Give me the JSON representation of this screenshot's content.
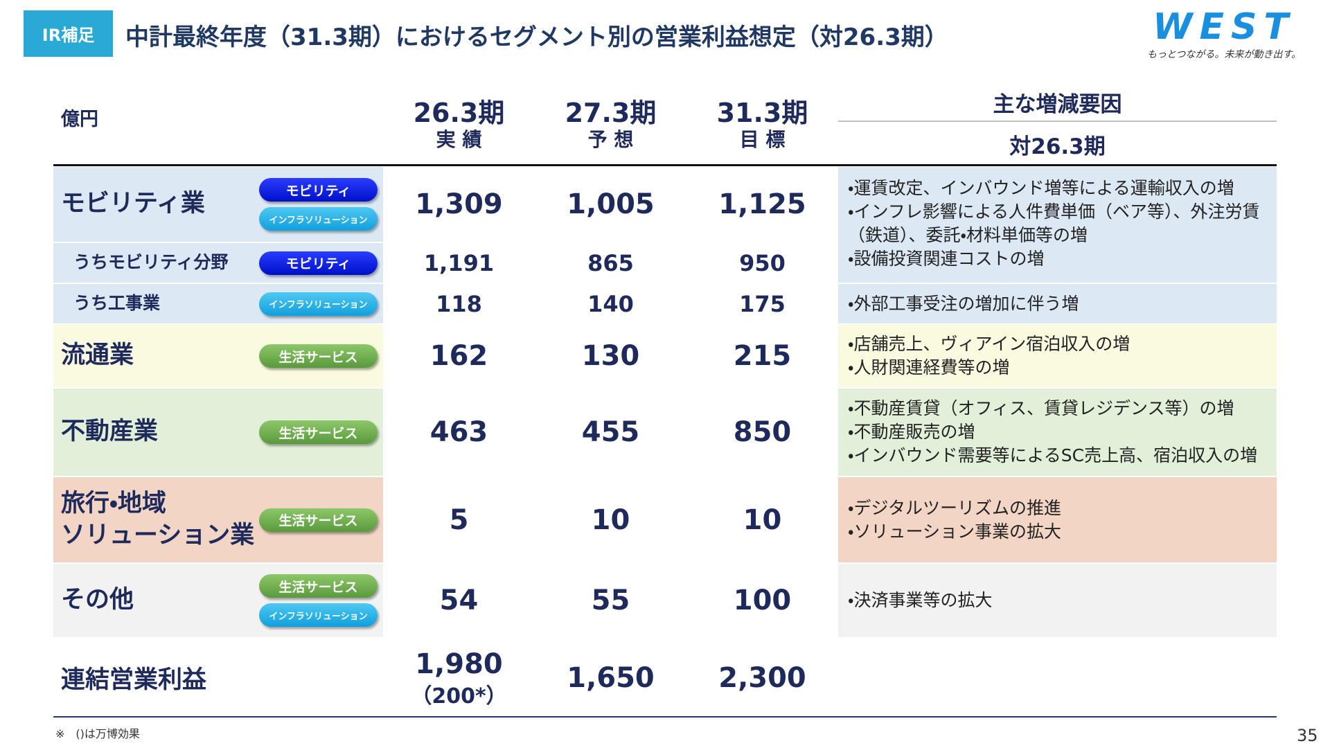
{
  "header": {
    "badge": "IR補足",
    "title": "中計最終年度（31.3期）におけるセグメント別の営業利益想定（対26.3期）",
    "logo": "WEST",
    "tagline": "もっとつながる。未来が動き出す。"
  },
  "table": {
    "unit": "億円",
    "columns": [
      {
        "period": "26.3期",
        "kind": "実 績"
      },
      {
        "period": "27.3期",
        "kind": "予 想"
      },
      {
        "period": "31.3期",
        "kind": "目 標"
      }
    ],
    "factors_header": "主な増減要因",
    "factors_sub": "対26.3期",
    "rows": [
      {
        "label": "モビリティ業",
        "tags": [
          "モビリティ",
          "インフラソリューション"
        ],
        "values": [
          "1,309",
          "1,005",
          "1,125"
        ],
        "factors": [
          "・運賃改定、インバウンド増等による運輸収入の増",
          "・インフレ影響による人件費単価（ベア等）、外注労賃",
          "（鉄道）、委託・材料単価等の増",
          "・設備投資関連コストの増"
        ]
      },
      {
        "label": "うちモビリティ分野",
        "tags": [
          "モビリティ"
        ],
        "values": [
          "1,191",
          "865",
          "950"
        ]
      },
      {
        "label": "うち工事業",
        "tags": [
          "インフラソリューション"
        ],
        "values": [
          "118",
          "140",
          "175"
        ],
        "factors": [
          "・外部工事受注の増加に伴う増"
        ]
      },
      {
        "label": "流通業",
        "tags": [
          "生活サービス"
        ],
        "values": [
          "162",
          "130",
          "215"
        ],
        "factors": [
          "・店舗売上、ヴィアイン宿泊収入の増",
          "・人財関連経費等の増"
        ]
      },
      {
        "label": "不動産業",
        "tags": [
          "生活サービス"
        ],
        "values": [
          "463",
          "455",
          "850"
        ],
        "factors": [
          "・不動産賃貸（オフィス、賃貸レジデンス等）の増",
          "・不動産販売の増",
          "・インバウンド需要等によるSC売上高、宿泊収入の増"
        ]
      },
      {
        "label": "旅行・地域\nソリューション業",
        "tags": [
          "生活サービス"
        ],
        "values": [
          "5",
          "10",
          "10"
        ],
        "factors": [
          "・デジタルツーリズムの推進",
          "・ソリューション事業の拡大"
        ]
      },
      {
        "label": "その他",
        "tags": [
          "生活サービス",
          "インフラソリューション"
        ],
        "values": [
          "54",
          "55",
          "100"
        ],
        "factors": [
          "・決済事業等の拡大"
        ]
      }
    ],
    "total": {
      "label": "連結営業利益",
      "values": [
        "1,980",
        "1,650",
        "2,300"
      ],
      "note": "（200*）"
    }
  },
  "footnote": "※　()は万博効果",
  "page": "35"
}
